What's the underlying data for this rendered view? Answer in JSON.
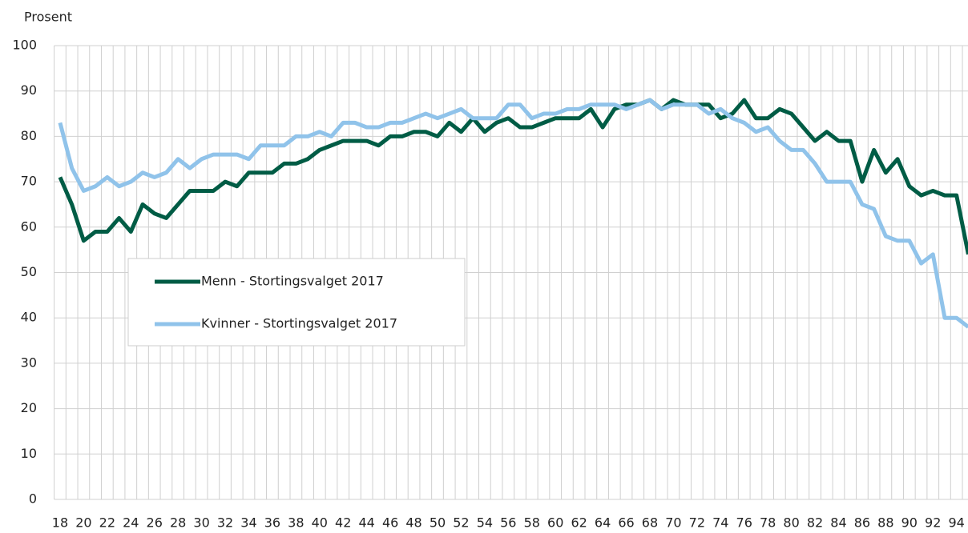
{
  "chart_data": {
    "type": "line",
    "y_axis_label": "Prosent",
    "categories": [
      "18",
      null,
      "20",
      null,
      "22",
      null,
      "24",
      null,
      "26",
      null,
      "28",
      null,
      "30",
      null,
      "32",
      null,
      "34",
      null,
      "36",
      null,
      "38",
      null,
      "40",
      null,
      "42",
      null,
      "44",
      null,
      "46",
      null,
      "48",
      null,
      "50",
      null,
      "52",
      null,
      "54",
      null,
      "56",
      null,
      "58",
      null,
      "60",
      null,
      "62",
      null,
      "64",
      null,
      "66",
      null,
      "68",
      null,
      "70",
      null,
      "72",
      null,
      "74",
      null,
      "76",
      null,
      "78",
      null,
      "80",
      null,
      "82",
      null,
      "84",
      null,
      "86",
      null,
      "88",
      null,
      "90",
      null,
      "92",
      null,
      "94",
      null
    ],
    "series": [
      {
        "name": "Menn - Stortingsvalget 2017",
        "color": "#005c45",
        "values": [
          71,
          65,
          57,
          59,
          59,
          62,
          59,
          65,
          63,
          62,
          65,
          68,
          68,
          68,
          70,
          69,
          72,
          72,
          72,
          74,
          74,
          75,
          77,
          78,
          79,
          79,
          79,
          78,
          80,
          80,
          81,
          81,
          80,
          83,
          81,
          84,
          81,
          83,
          84,
          82,
          82,
          83,
          84,
          84,
          84,
          86,
          82,
          86,
          87,
          87,
          88,
          86,
          88,
          87,
          87,
          87,
          84,
          85,
          88,
          84,
          84,
          86,
          85,
          82,
          79,
          81,
          79,
          79,
          70,
          77,
          72,
          75,
          69,
          67,
          68,
          67,
          67,
          54
        ]
      },
      {
        "name": "Kvinner - Stortingsvalget 2017",
        "color": "#90c3ea",
        "values": [
          83,
          73,
          68,
          69,
          71,
          69,
          70,
          72,
          71,
          72,
          75,
          73,
          75,
          76,
          76,
          76,
          75,
          78,
          78,
          78,
          80,
          80,
          81,
          80,
          83,
          83,
          82,
          82,
          83,
          83,
          84,
          85,
          84,
          85,
          86,
          84,
          84,
          84,
          87,
          87,
          84,
          85,
          85,
          86,
          86,
          87,
          87,
          87,
          86,
          87,
          88,
          86,
          87,
          87,
          87,
          85,
          86,
          84,
          83,
          81,
          82,
          79,
          77,
          77,
          74,
          70,
          70,
          70,
          65,
          64,
          58,
          57,
          57,
          52,
          54,
          40,
          40,
          38
        ]
      }
    ],
    "ylim": [
      0,
      100
    ],
    "yticks": [
      0,
      10,
      20,
      30,
      40,
      50,
      60,
      70,
      80,
      90,
      100
    ],
    "grid": true
  }
}
